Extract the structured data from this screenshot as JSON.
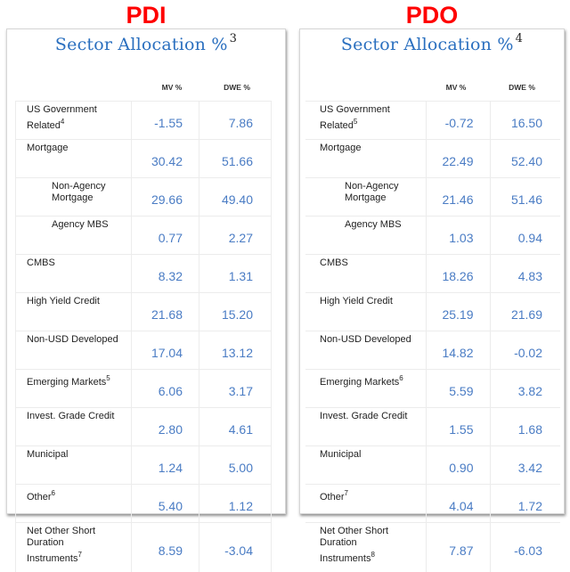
{
  "panels": [
    {
      "fund": "PDI",
      "title": "Sector Allocation %",
      "title_footnote": "3",
      "columns": [
        "MV %",
        "DWE %"
      ],
      "rows": [
        {
          "label": "US Government Related",
          "footnote": "4",
          "mv": "-1.55",
          "dwe": "7.86",
          "indent": false
        },
        {
          "label": "Mortgage",
          "footnote": "",
          "mv": "30.42",
          "dwe": "51.66",
          "indent": false
        },
        {
          "label": "Non-Agency Mortgage",
          "footnote": "",
          "mv": "29.66",
          "dwe": "49.40",
          "indent": true
        },
        {
          "label": "Agency MBS",
          "footnote": "",
          "mv": "0.77",
          "dwe": "2.27",
          "indent": true
        },
        {
          "label": "CMBS",
          "footnote": "",
          "mv": "8.32",
          "dwe": "1.31",
          "indent": false
        },
        {
          "label": "High Yield Credit",
          "footnote": "",
          "mv": "21.68",
          "dwe": "15.20",
          "indent": false
        },
        {
          "label": "Non-USD Developed",
          "footnote": "",
          "mv": "17.04",
          "dwe": "13.12",
          "indent": false
        },
        {
          "label": "Emerging Markets",
          "footnote": "5",
          "mv": "6.06",
          "dwe": "3.17",
          "indent": false
        },
        {
          "label": "Invest. Grade Credit",
          "footnote": "",
          "mv": "2.80",
          "dwe": "4.61",
          "indent": false
        },
        {
          "label": "Municipal",
          "footnote": "",
          "mv": "1.24",
          "dwe": "5.00",
          "indent": false
        },
        {
          "label": "Other",
          "footnote": "6",
          "mv": "5.40",
          "dwe": "1.12",
          "indent": false
        },
        {
          "label": "Net Other Short Duration Instruments",
          "footnote": "7",
          "mv": "8.59",
          "dwe": "-3.04",
          "indent": false
        }
      ]
    },
    {
      "fund": "PDO",
      "title": "Sector Allocation %",
      "title_footnote": "4",
      "columns": [
        "MV %",
        "DWE %"
      ],
      "rows": [
        {
          "label": "US Government Related",
          "footnote": "5",
          "mv": "-0.72",
          "dwe": "16.50",
          "indent": false
        },
        {
          "label": "Mortgage",
          "footnote": "",
          "mv": "22.49",
          "dwe": "52.40",
          "indent": false
        },
        {
          "label": "Non-Agency Mortgage",
          "footnote": "",
          "mv": "21.46",
          "dwe": "51.46",
          "indent": true
        },
        {
          "label": "Agency MBS",
          "footnote": "",
          "mv": "1.03",
          "dwe": "0.94",
          "indent": true
        },
        {
          "label": "CMBS",
          "footnote": "",
          "mv": "18.26",
          "dwe": "4.83",
          "indent": false
        },
        {
          "label": "High Yield Credit",
          "footnote": "",
          "mv": "25.19",
          "dwe": "21.69",
          "indent": false
        },
        {
          "label": "Non-USD Developed",
          "footnote": "",
          "mv": "14.82",
          "dwe": "-0.02",
          "indent": false
        },
        {
          "label": "Emerging Markets",
          "footnote": "6",
          "mv": "5.59",
          "dwe": "3.82",
          "indent": false
        },
        {
          "label": "Invest. Grade Credit",
          "footnote": "",
          "mv": "1.55",
          "dwe": "1.68",
          "indent": false
        },
        {
          "label": "Municipal",
          "footnote": "",
          "mv": "0.90",
          "dwe": "3.42",
          "indent": false
        },
        {
          "label": "Other",
          "footnote": "7",
          "mv": "4.04",
          "dwe": "1.72",
          "indent": false
        },
        {
          "label": "Net Other Short Duration Instruments",
          "footnote": "8",
          "mv": "7.87",
          "dwe": "-6.03",
          "indent": false
        }
      ]
    }
  ],
  "colors": {
    "fund_label": "#ff0000",
    "title": "#2a6fbf",
    "values": "#4a7cc4",
    "labels": "#222222",
    "grid": "#ececec"
  }
}
